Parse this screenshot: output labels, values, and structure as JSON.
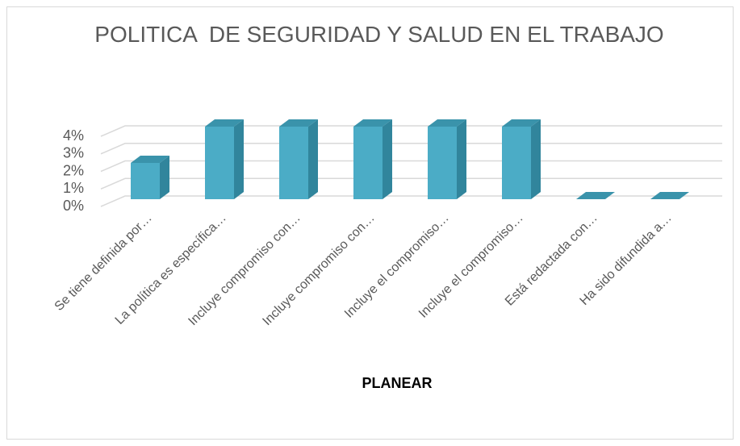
{
  "chart_data": {
    "type": "bar3d",
    "title": "POLITICA  DE SEGURIDAD Y SALUD EN EL TRABAJO",
    "x_label": "PLANEAR",
    "categories": [
      "Se tiene definida por…",
      "La política es específica…",
      "Incluye compromiso con…",
      "Incluye compromiso con…",
      "Incluye el compromiso…",
      "Incluye el compromiso…",
      "Está redactada con…",
      "Ha sido difundida a…"
    ],
    "values": [
      2,
      4,
      4,
      4,
      4,
      4,
      0,
      0
    ],
    "color": "#4bacc6",
    "ylim": [
      0,
      4
    ],
    "yticks": [
      {
        "value": 0,
        "label": "0%"
      },
      {
        "value": 1,
        "label": "1%"
      },
      {
        "value": 2,
        "label": "2%"
      },
      {
        "value": 3,
        "label": "3%"
      },
      {
        "value": 4,
        "label": "4%"
      }
    ],
    "grid": true
  }
}
